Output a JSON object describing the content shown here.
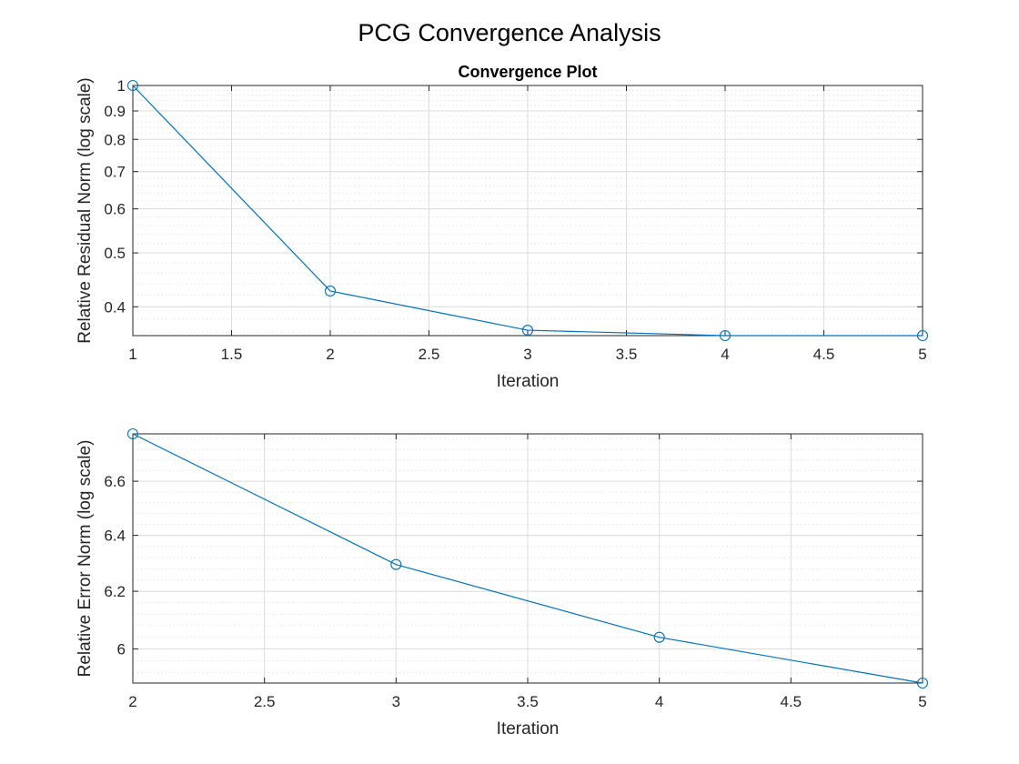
{
  "figure": {
    "title": "PCG Convergence Analysis"
  },
  "colors": {
    "series": "#0072BD",
    "grid": "#dcdcdc",
    "axis": "#262626"
  },
  "chart_data": [
    {
      "type": "line",
      "title": "Convergence Plot",
      "xlabel": "Iteration",
      "ylabel": "Relative Residual Norm (log scale)",
      "yscale": "log",
      "grid": true,
      "minor_grid": true,
      "marker": "circle",
      "xlim": [
        1,
        5
      ],
      "ylim": [
        0.355,
        1.0
      ],
      "xticks": [
        1,
        1.5,
        2,
        2.5,
        3,
        3.5,
        4,
        4.5,
        5
      ],
      "xtick_labels": [
        "1",
        "1.5",
        "2",
        "2.5",
        "3",
        "3.5",
        "4",
        "4.5",
        "5"
      ],
      "yticks": [
        0.4,
        0.5,
        0.6,
        0.7,
        0.8,
        0.9,
        1
      ],
      "ytick_labels": [
        "0.4",
        "0.5",
        "0.6",
        "0.7",
        "0.8",
        "0.9",
        "1"
      ],
      "x": [
        1,
        2,
        3,
        4,
        5
      ],
      "y": [
        1.0,
        0.427,
        0.363,
        0.355,
        0.355
      ]
    },
    {
      "type": "line",
      "title": "",
      "xlabel": "Iteration",
      "ylabel": "Relative Error Norm (log scale)",
      "yscale": "log",
      "grid": true,
      "minor_grid": true,
      "marker": "circle",
      "xlim": [
        2,
        5
      ],
      "ylim": [
        5.885,
        6.78
      ],
      "xticks": [
        2,
        2.5,
        3,
        3.5,
        4,
        4.5,
        5
      ],
      "xtick_labels": [
        "2",
        "2.5",
        "3",
        "3.5",
        "4",
        "4.5",
        "5"
      ],
      "yticks": [
        6,
        6.2,
        6.4,
        6.6
      ],
      "ytick_labels": [
        "6",
        "6.2",
        "6.4",
        "6.6"
      ],
      "x": [
        2,
        3,
        4,
        5
      ],
      "y": [
        6.78,
        6.295,
        6.04,
        5.885
      ]
    }
  ]
}
